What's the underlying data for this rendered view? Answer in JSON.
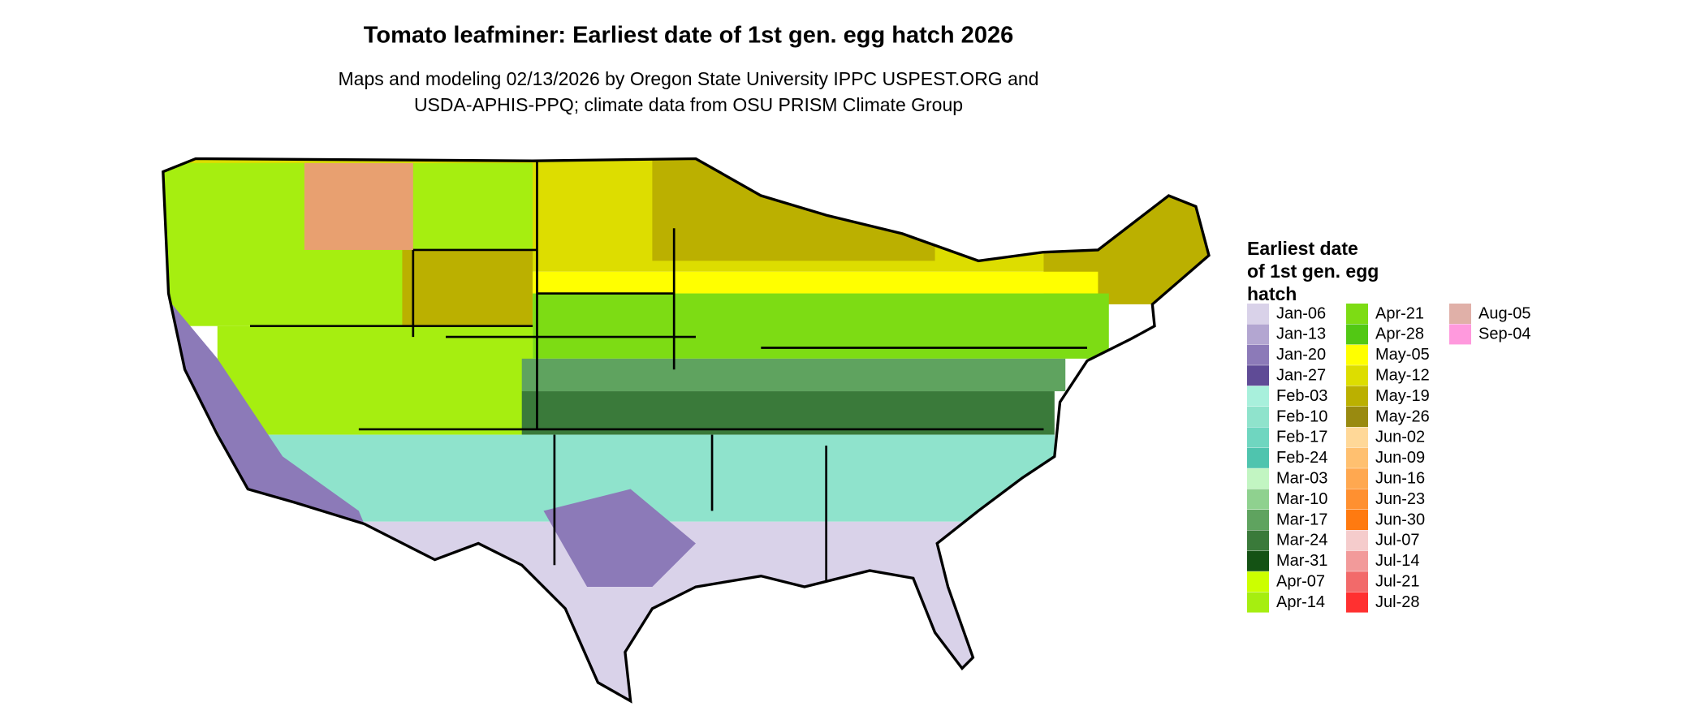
{
  "header": {
    "title": "Tomato leafminer: Earliest date of 1st gen. egg hatch 2026",
    "subtitle": [
      "Maps and modeling 02/13/2026 by Oregon State University IPPC USPEST.ORG and",
      "USDA-APHIS-PPQ; climate data from OSU PRISM Climate Group"
    ]
  },
  "legend": {
    "title": [
      "Earliest date",
      "of 1st gen. egg",
      "hatch"
    ],
    "items": [
      {
        "label": "Jan-06",
        "color": "#d9d2e9"
      },
      {
        "label": "Jan-13",
        "color": "#b3a6d1"
      },
      {
        "label": "Jan-20",
        "color": "#8c7ab8"
      },
      {
        "label": "Jan-27",
        "color": "#5f4b96"
      },
      {
        "label": "Feb-03",
        "color": "#a8f0dc"
      },
      {
        "label": "Feb-10",
        "color": "#8fe3cc"
      },
      {
        "label": "Feb-17",
        "color": "#6fd6c0"
      },
      {
        "label": "Feb-24",
        "color": "#4fc4ae"
      },
      {
        "label": "Mar-03",
        "color": "#c2f5c2"
      },
      {
        "label": "Mar-10",
        "color": "#8fd18f"
      },
      {
        "label": "Mar-17",
        "color": "#5fa35f"
      },
      {
        "label": "Mar-24",
        "color": "#3a7a3a"
      },
      {
        "label": "Mar-31",
        "color": "#145214"
      },
      {
        "label": "Apr-07",
        "color": "#ccff00"
      },
      {
        "label": "Apr-14",
        "color": "#a6ee10"
      },
      {
        "label": "Apr-21",
        "color": "#7ddc14"
      },
      {
        "label": "Apr-28",
        "color": "#52c814"
      },
      {
        "label": "May-05",
        "color": "#ffff00"
      },
      {
        "label": "May-12",
        "color": "#dddd00"
      },
      {
        "label": "May-19",
        "color": "#bbb000"
      },
      {
        "label": "May-26",
        "color": "#998a10"
      },
      {
        "label": "Jun-02",
        "color": "#ffd898"
      },
      {
        "label": "Jun-09",
        "color": "#ffc070"
      },
      {
        "label": "Jun-16",
        "color": "#ffa850"
      },
      {
        "label": "Jun-23",
        "color": "#ff9030"
      },
      {
        "label": "Jun-30",
        "color": "#ff7a10"
      },
      {
        "label": "Jul-07",
        "color": "#f5cccc"
      },
      {
        "label": "Jul-14",
        "color": "#f29a9a"
      },
      {
        "label": "Jul-21",
        "color": "#f26a6a"
      },
      {
        "label": "Jul-28",
        "color": "#ff3030"
      },
      {
        "label": "Aug-05",
        "color": "#e0b0a8"
      },
      {
        "label": "Sep-04",
        "color": "#ff99dd"
      }
    ]
  }
}
